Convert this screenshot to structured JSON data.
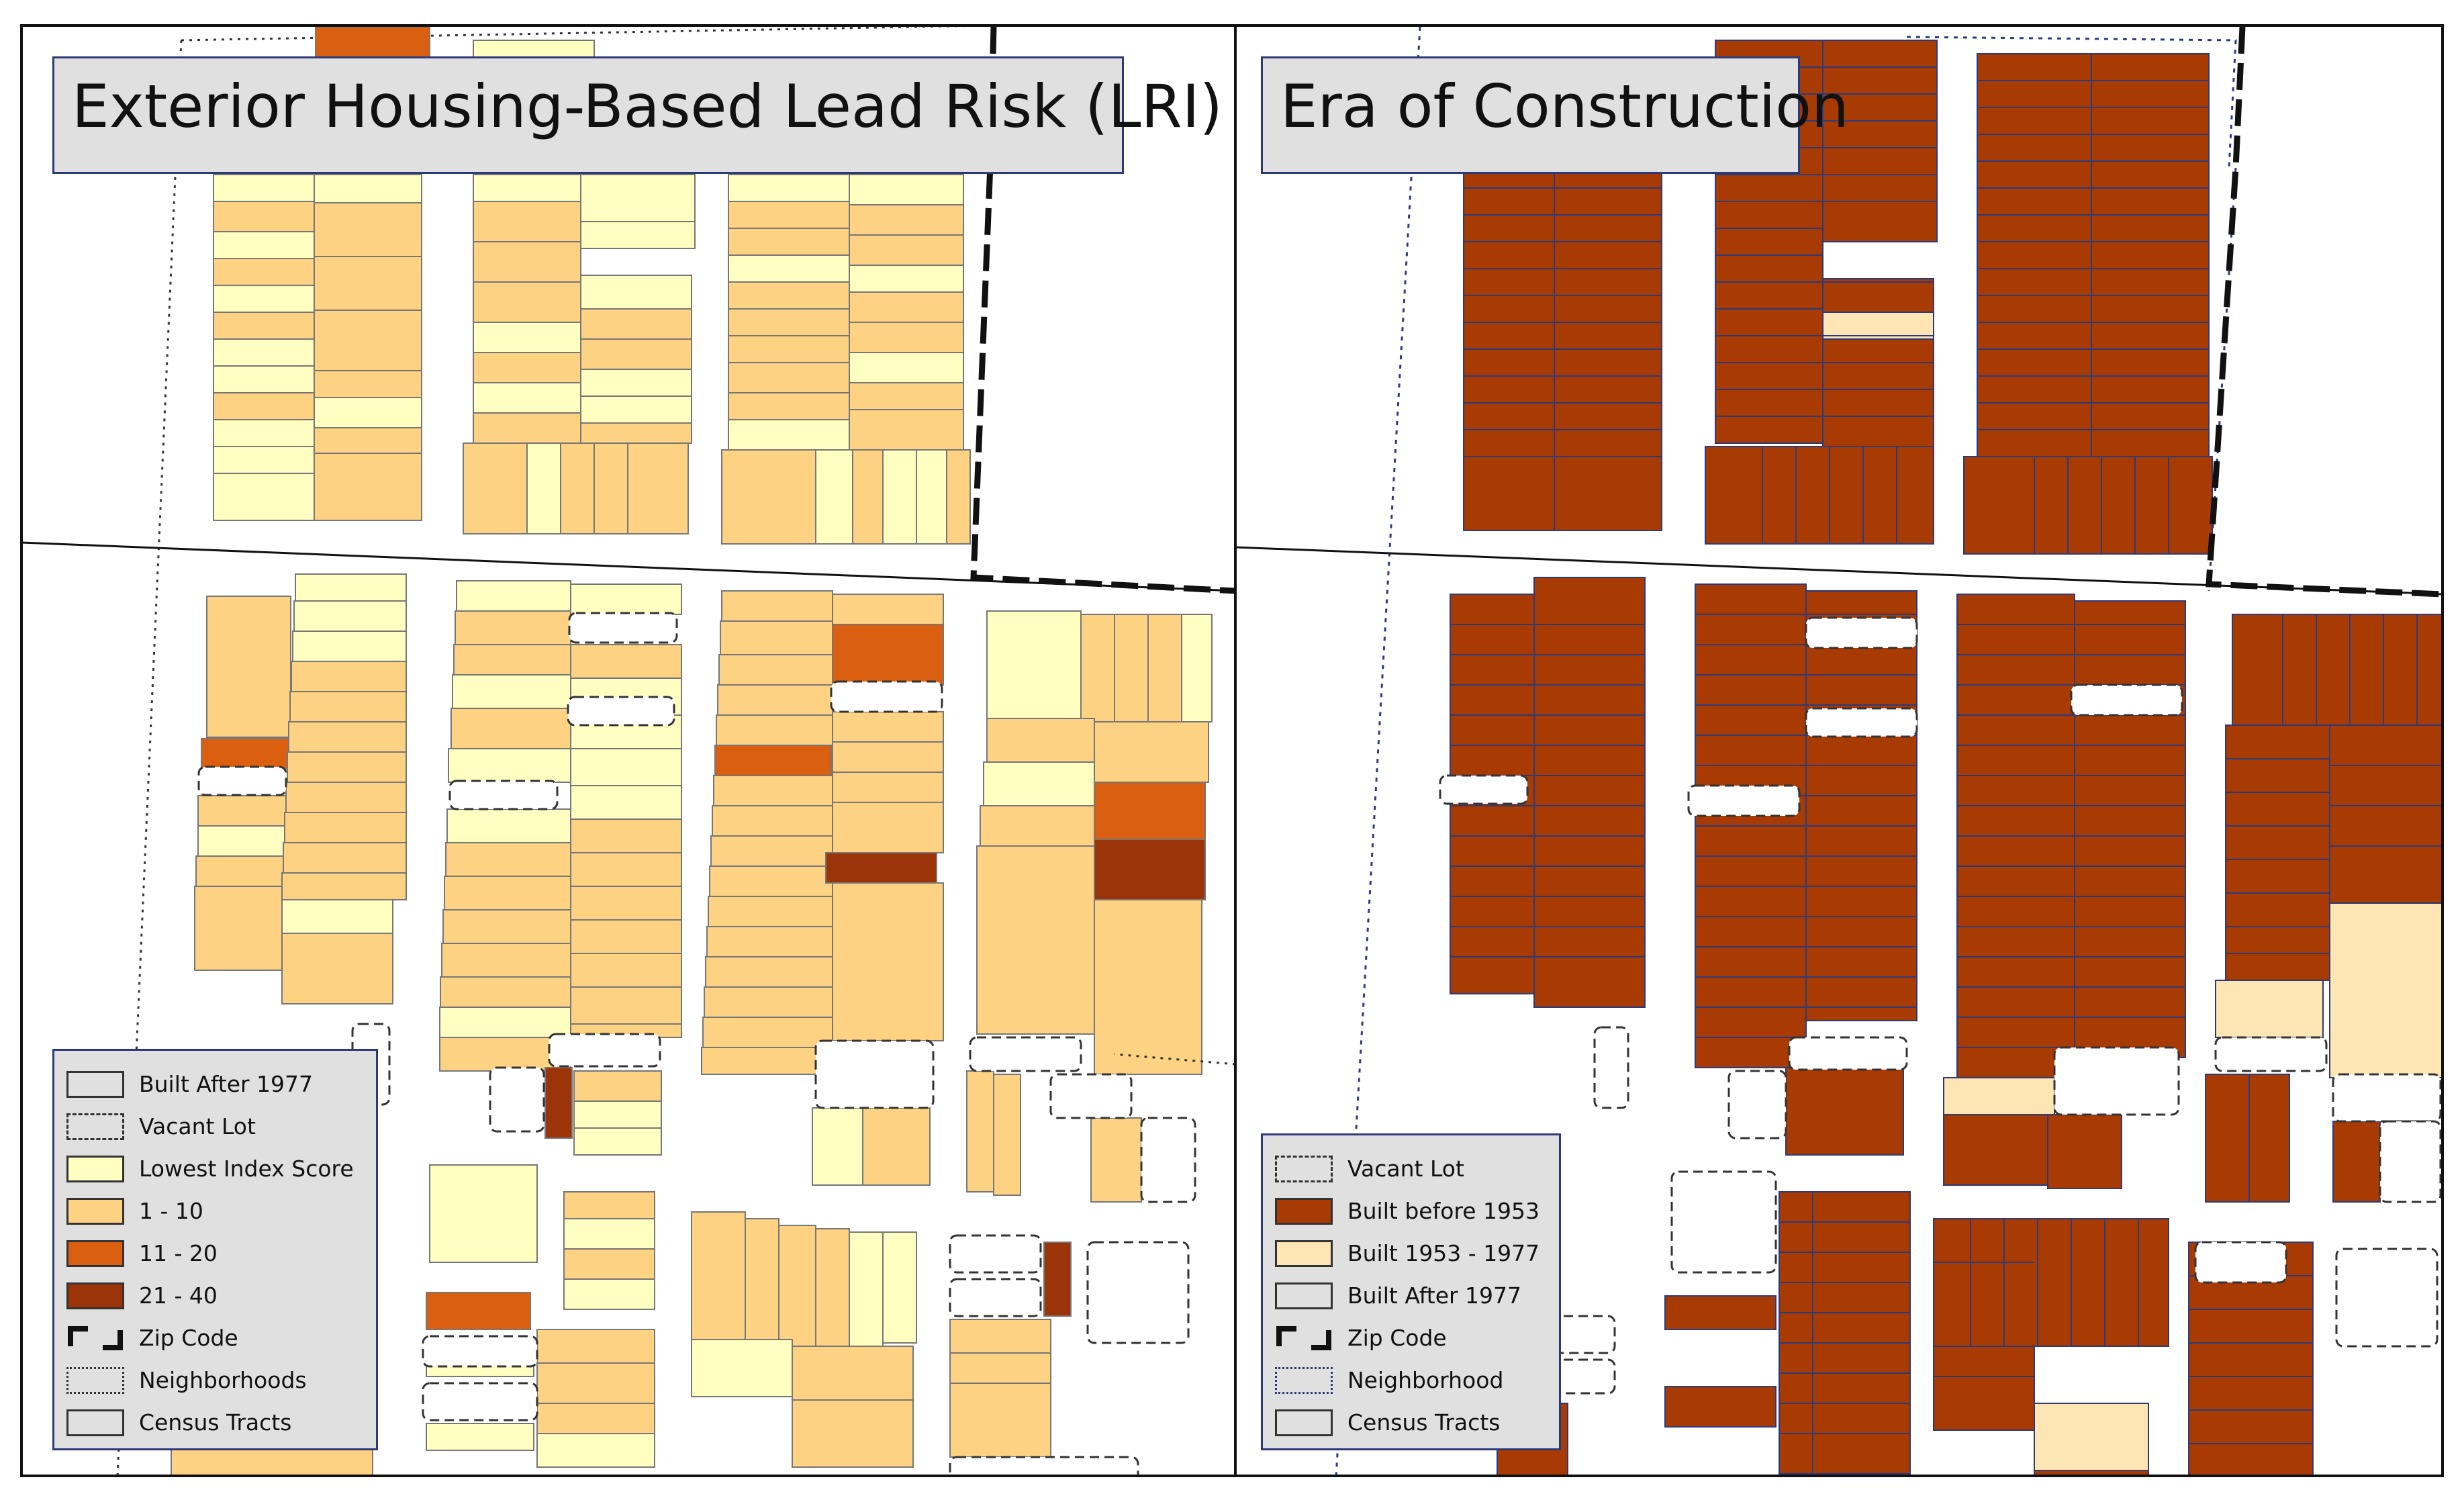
{
  "left_panel": {
    "title": "Exterior Housing-Based Lead Risk (LRI)",
    "legend": [
      {
        "label": "Built After 1977",
        "style": "solid",
        "fill": "#e0e0e0"
      },
      {
        "label": "Vacant Lot",
        "style": "dashed",
        "fill": "transparent"
      },
      {
        "label": "Lowest Index Score",
        "style": "solid",
        "fill": "#ffffc2"
      },
      {
        "label": "1 - 10",
        "style": "solid",
        "fill": "#fdd283"
      },
      {
        "label": "11 - 20",
        "style": "solid",
        "fill": "#db5f10"
      },
      {
        "label": "21 - 40",
        "style": "solid",
        "fill": "#9c3409"
      },
      {
        "label": "Zip Code",
        "style": "zip",
        "fill": "transparent"
      },
      {
        "label": "Neighborhoods",
        "style": "dotted",
        "fill": "transparent"
      },
      {
        "label": "Census Tracts",
        "style": "solid",
        "fill": "#e0e0e0"
      }
    ]
  },
  "right_panel": {
    "title": "Era of Construction",
    "legend": [
      {
        "label": "Vacant Lot",
        "style": "dashed",
        "fill": "transparent"
      },
      {
        "label": "Built before 1953",
        "style": "solid",
        "fill": "#a83a04"
      },
      {
        "label": "Built 1953 - 1977",
        "style": "solid",
        "fill": "#fde6b4"
      },
      {
        "label": "Built After 1977",
        "style": "solid",
        "fill": "#e0e0e0"
      },
      {
        "label": "Zip Code",
        "style": "zip",
        "fill": "transparent"
      },
      {
        "label": "Neighborhood",
        "style": "dotted-blue",
        "fill": "transparent"
      },
      {
        "label": "Census Tracts",
        "style": "solid",
        "fill": "#e0e0e0"
      }
    ]
  },
  "colors": {
    "lowest": "#ffffc2",
    "low": "#fdd283",
    "mid": "#db5f10",
    "high": "#9c3409",
    "before1953": "#a83a04",
    "era1953_1977": "#fde6b4",
    "panel_border": "#2d3a78"
  }
}
